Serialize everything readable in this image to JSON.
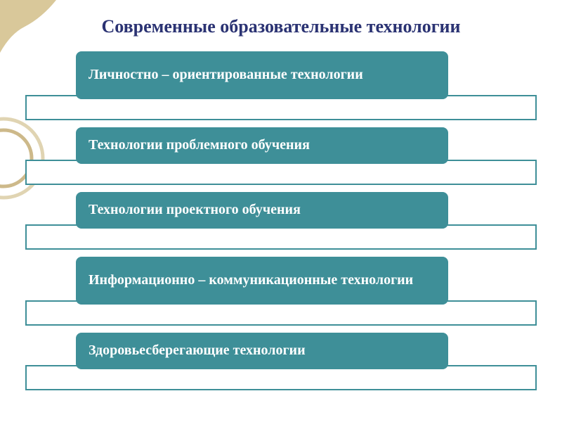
{
  "background_color": "#ffffff",
  "title": {
    "text": "Современные образовательные технологии",
    "color": "#2b3373",
    "fontsize": 26
  },
  "deco": {
    "corner_color": "#d9c89a",
    "ring_outer": "#e0d4b2",
    "ring_inner": "#cdb98a"
  },
  "item_style": {
    "front_bg": "#3e8f98",
    "front_text_color": "#ffffff",
    "front_fontsize": 20,
    "back_border_color": "#3e8f98",
    "back_bg": "#ffffff",
    "front_radius": 8
  },
  "items": [
    {
      "label": "Личностно – ориентированные технологии",
      "lines": 2
    },
    {
      "label": "Технологии проблемного обучения",
      "lines": 1
    },
    {
      "label": "Технологии проектного обучения",
      "lines": 1
    },
    {
      "label": "Информационно – коммуникационные технологии",
      "lines": 2
    },
    {
      "label": "Здоровьесберегающие технологии",
      "lines": 1
    }
  ]
}
